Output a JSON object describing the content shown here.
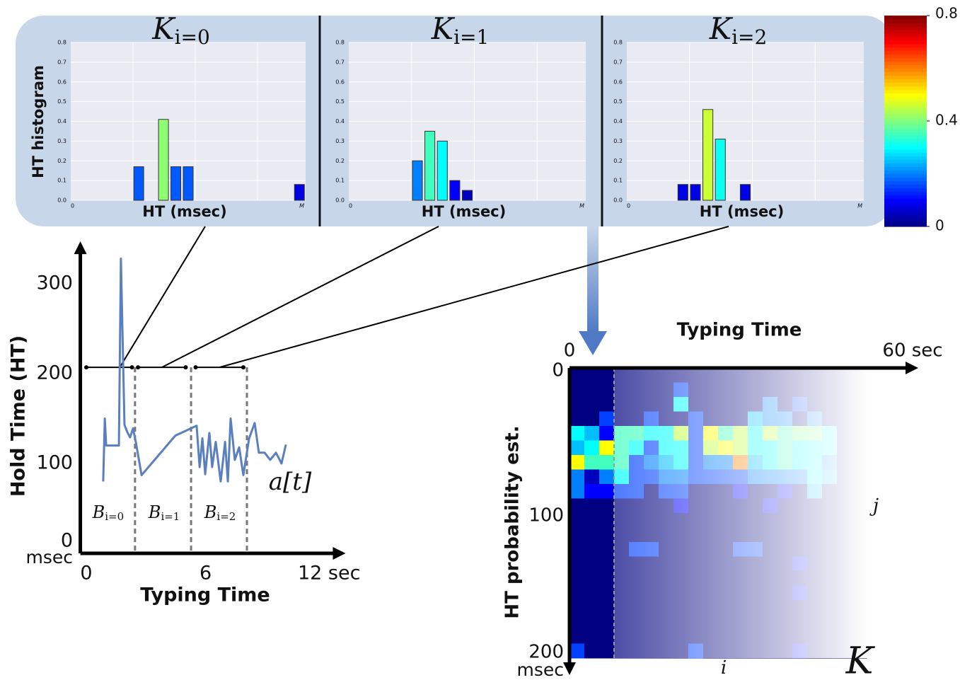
{
  "chart_data": [
    {
      "type": "bar",
      "title": "K",
      "title_subscript": "i=0",
      "ylabel": "HT histogram",
      "xlabel": "HT (msec)",
      "x_range_labels": [
        "0",
        "M"
      ],
      "categories": [
        null,
        null,
        null,
        null,
        null,
        null,
        null,
        null,
        null,
        null,
        null,
        null,
        null,
        null,
        null,
        null,
        null,
        null,
        null
      ],
      "values": [
        0,
        0,
        0,
        0,
        0,
        0.17,
        0,
        0.41,
        0.17,
        0.17,
        0,
        0,
        0,
        0,
        0,
        0,
        0,
        0,
        0.08
      ],
      "ylim": [
        0,
        0.8
      ],
      "yticks": [
        {
          "value": 0,
          "label": "0.0"
        },
        0.1,
        0.2,
        0.3,
        0.4,
        0.5,
        0.6,
        0.7,
        0.8
      ],
      "grid": true,
      "colormap": "jet",
      "clim": [
        0,
        0.8
      ]
    },
    {
      "type": "bar",
      "title": "K",
      "title_subscript": "i=1",
      "xlabel": "HT (msec)",
      "x_range_labels": [
        "0",
        "M"
      ],
      "categories": [
        null,
        null,
        null,
        null,
        null,
        null,
        null,
        null,
        null,
        null,
        null,
        null,
        null,
        null,
        null,
        null,
        null,
        null,
        null
      ],
      "values": [
        0,
        0,
        0,
        0,
        0,
        0.2,
        0.35,
        0.3,
        0.1,
        0.05,
        0,
        0,
        0,
        0,
        0,
        0,
        0,
        0,
        0
      ],
      "ylim": [
        0,
        0.8
      ],
      "yticks": [
        {
          "value": 0,
          "label": "0.0"
        },
        0.1,
        0.2,
        0.3,
        0.4,
        0.5,
        0.6,
        0.7,
        0.8
      ],
      "grid": true,
      "colormap": "jet",
      "clim": [
        0,
        0.8
      ]
    },
    {
      "type": "bar",
      "title": "K",
      "title_subscript": "i=2",
      "xlabel": "HT (msec)",
      "x_range_labels": [
        "0",
        "M"
      ],
      "categories": [
        null,
        null,
        null,
        null,
        null,
        null,
        null,
        null,
        null,
        null,
        null,
        null,
        null,
        null,
        null,
        null,
        null,
        null,
        null
      ],
      "values": [
        0,
        0,
        0,
        0,
        0.08,
        0.08,
        0.46,
        0.31,
        0,
        0.08,
        0,
        0,
        0,
        0,
        0,
        0,
        0,
        0,
        0
      ],
      "ylim": [
        0,
        0.8
      ],
      "yticks": [
        {
          "value": 0,
          "label": "0.0"
        },
        0.1,
        0.2,
        0.3,
        0.4,
        0.5,
        0.6,
        0.7,
        0.8
      ],
      "grid": true,
      "colormap": "jet",
      "clim": [
        0,
        0.8
      ]
    },
    {
      "type": "line",
      "xlabel": "Typing Time",
      "ylabel": "Hold Time (HT)",
      "y_unit": "msec",
      "color": "#5b7fbf",
      "x": [
        0.85,
        0.93,
        1.0,
        1.64,
        1.74,
        1.92,
        2.06,
        2.2,
        2.35,
        2.49,
        2.78,
        4.48,
        5.55,
        5.7,
        5.84,
        5.98,
        6.19,
        6.33,
        6.51,
        6.76,
        6.98,
        7.12,
        7.26,
        7.47,
        7.69,
        7.9,
        8.19,
        8.47,
        8.68,
        8.97,
        9.25,
        9.54,
        9.82,
        10.04
      ],
      "values": [
        80,
        150,
        120,
        120,
        328,
        143,
        135,
        129,
        139,
        124,
        87,
        131,
        142,
        96,
        128,
        88,
        134,
        96,
        124,
        80,
        124,
        80,
        150,
        104,
        118,
        87,
        128,
        145,
        112,
        112,
        104,
        112,
        100,
        121
      ],
      "xlim": [
        -0.3,
        12.9
      ],
      "ylim": [
        0,
        344
      ],
      "xticks": [
        0,
        6,
        {
          "value": 12,
          "label": "12 sec"
        }
      ],
      "yticks": [
        0,
        100,
        200,
        300
      ],
      "annotation": "a[t]",
      "block_label": "B",
      "block_subscripts": [
        "i=0",
        "i=1",
        "i=2"
      ],
      "block_boundaries": [
        2.45,
        5.27,
        8.08
      ],
      "windows": [
        [
          0,
          2.3
        ],
        [
          2.6,
          5.0
        ],
        [
          5.5,
          7.9
        ]
      ],
      "window_level": 207
    },
    {
      "type": "heatmap",
      "title": "Typing Time",
      "ylabel": "HT probability est.",
      "y_unit": "msec",
      "xlim": [
        0,
        60
      ],
      "xticks": [
        0,
        {
          "value": 60,
          "label": "60 sec"
        }
      ],
      "ylim": [
        0,
        200
      ],
      "yticks": [
        0,
        100,
        200
      ],
      "col_label": "i",
      "row_label": "j",
      "matrix_label": "K",
      "divider_column": 3,
      "colormap": "jet",
      "clim": [
        0,
        0.8
      ],
      "colorbar_ticks": [
        0,
        0.4,
        0.8
      ],
      "values": [
        [
          0,
          0,
          0,
          0,
          0,
          0,
          0,
          0,
          0,
          0,
          0,
          0,
          0,
          0,
          0,
          0,
          0,
          0,
          0,
          0
        ],
        [
          0,
          0,
          0,
          0,
          0,
          0,
          0,
          0.15,
          0,
          0,
          0,
          0,
          0,
          0,
          0,
          0,
          0,
          0,
          0,
          0
        ],
        [
          0,
          0,
          0,
          0,
          0,
          0,
          0,
          0.3,
          0,
          0,
          0,
          0,
          0,
          0.2,
          0,
          0.15,
          0,
          0,
          0,
          0
        ],
        [
          0,
          0,
          0.15,
          0,
          0,
          0.15,
          0,
          0,
          0.15,
          0,
          0,
          0,
          0.25,
          0.2,
          0.2,
          0,
          0.2,
          0,
          0,
          0
        ],
        [
          0.3,
          0.25,
          0.1,
          0.35,
          0.35,
          0.3,
          0.3,
          0.45,
          0.15,
          0.5,
          0.35,
          0.45,
          0.3,
          0.45,
          0.35,
          0.4,
          0.4,
          0.3,
          0,
          0
        ],
        [
          0.25,
          0.3,
          0.5,
          0.35,
          0.3,
          0.15,
          0.3,
          0.3,
          0.15,
          0.45,
          0.5,
          0.45,
          0.3,
          0.3,
          0.35,
          0.3,
          0.3,
          0.3,
          0,
          0
        ],
        [
          0.5,
          0.35,
          0.35,
          0.35,
          0.15,
          0.2,
          0.25,
          0.3,
          0.15,
          0.2,
          0.2,
          0.6,
          0.25,
          0.3,
          0.35,
          0.3,
          0.3,
          0.2,
          0,
          0
        ],
        [
          0.2,
          0.05,
          0.2,
          0.3,
          0.15,
          0.15,
          0.2,
          0.2,
          0.15,
          0.15,
          0.15,
          0.15,
          0.2,
          0.2,
          0.2,
          0.2,
          0.3,
          0.25,
          0,
          0
        ],
        [
          0.2,
          0.1,
          0.1,
          0.15,
          0.15,
          0,
          0.15,
          0.15,
          0,
          0,
          0,
          0.1,
          0,
          0,
          0.1,
          0,
          0.25,
          0,
          0,
          0
        ],
        [
          0,
          0,
          0,
          0,
          0,
          0,
          0,
          0.1,
          0,
          0,
          0,
          0,
          0,
          0.1,
          0,
          0,
          0,
          0,
          0,
          0
        ],
        [
          0,
          0,
          0,
          0,
          0,
          0,
          0,
          0,
          0,
          0,
          0,
          0,
          0,
          0,
          0,
          0,
          0,
          0,
          0,
          0
        ],
        [
          0,
          0,
          0,
          0,
          0,
          0,
          0,
          0,
          0,
          0,
          0,
          0,
          0,
          0,
          0,
          0,
          0,
          0,
          0,
          0
        ],
        [
          0,
          0,
          0,
          0,
          0.15,
          0.15,
          0,
          0,
          0,
          0,
          0,
          0.15,
          0.15,
          0,
          0,
          0,
          0,
          0,
          0,
          0
        ],
        [
          0,
          0,
          0,
          0,
          0,
          0,
          0,
          0,
          0,
          0,
          0,
          0,
          0,
          0,
          0,
          0.1,
          0,
          0,
          0,
          0
        ],
        [
          0,
          0,
          0,
          0,
          0,
          0,
          0,
          0,
          0,
          0,
          0,
          0,
          0,
          0,
          0,
          0,
          0,
          0,
          0,
          0
        ],
        [
          0,
          0,
          0,
          0,
          0,
          0,
          0,
          0,
          0,
          0,
          0,
          0,
          0,
          0,
          0,
          0.1,
          0,
          0,
          0,
          0
        ],
        [
          0,
          0,
          0,
          0,
          0,
          0,
          0,
          0,
          0,
          0,
          0,
          0,
          0,
          0,
          0,
          0,
          0,
          0,
          0,
          0
        ],
        [
          0,
          0,
          0,
          0,
          0,
          0,
          0,
          0,
          0,
          0,
          0,
          0,
          0,
          0,
          0,
          0,
          0,
          0,
          0,
          0
        ],
        [
          0,
          0,
          0,
          0,
          0,
          0,
          0,
          0,
          0,
          0,
          0,
          0,
          0,
          0,
          0,
          0,
          0,
          0,
          0,
          0
        ],
        [
          0.15,
          0,
          0,
          0,
          0,
          0,
          0,
          0,
          0.15,
          0,
          0,
          0,
          0,
          0,
          0,
          0.1,
          0,
          0,
          0,
          0
        ]
      ]
    }
  ]
}
